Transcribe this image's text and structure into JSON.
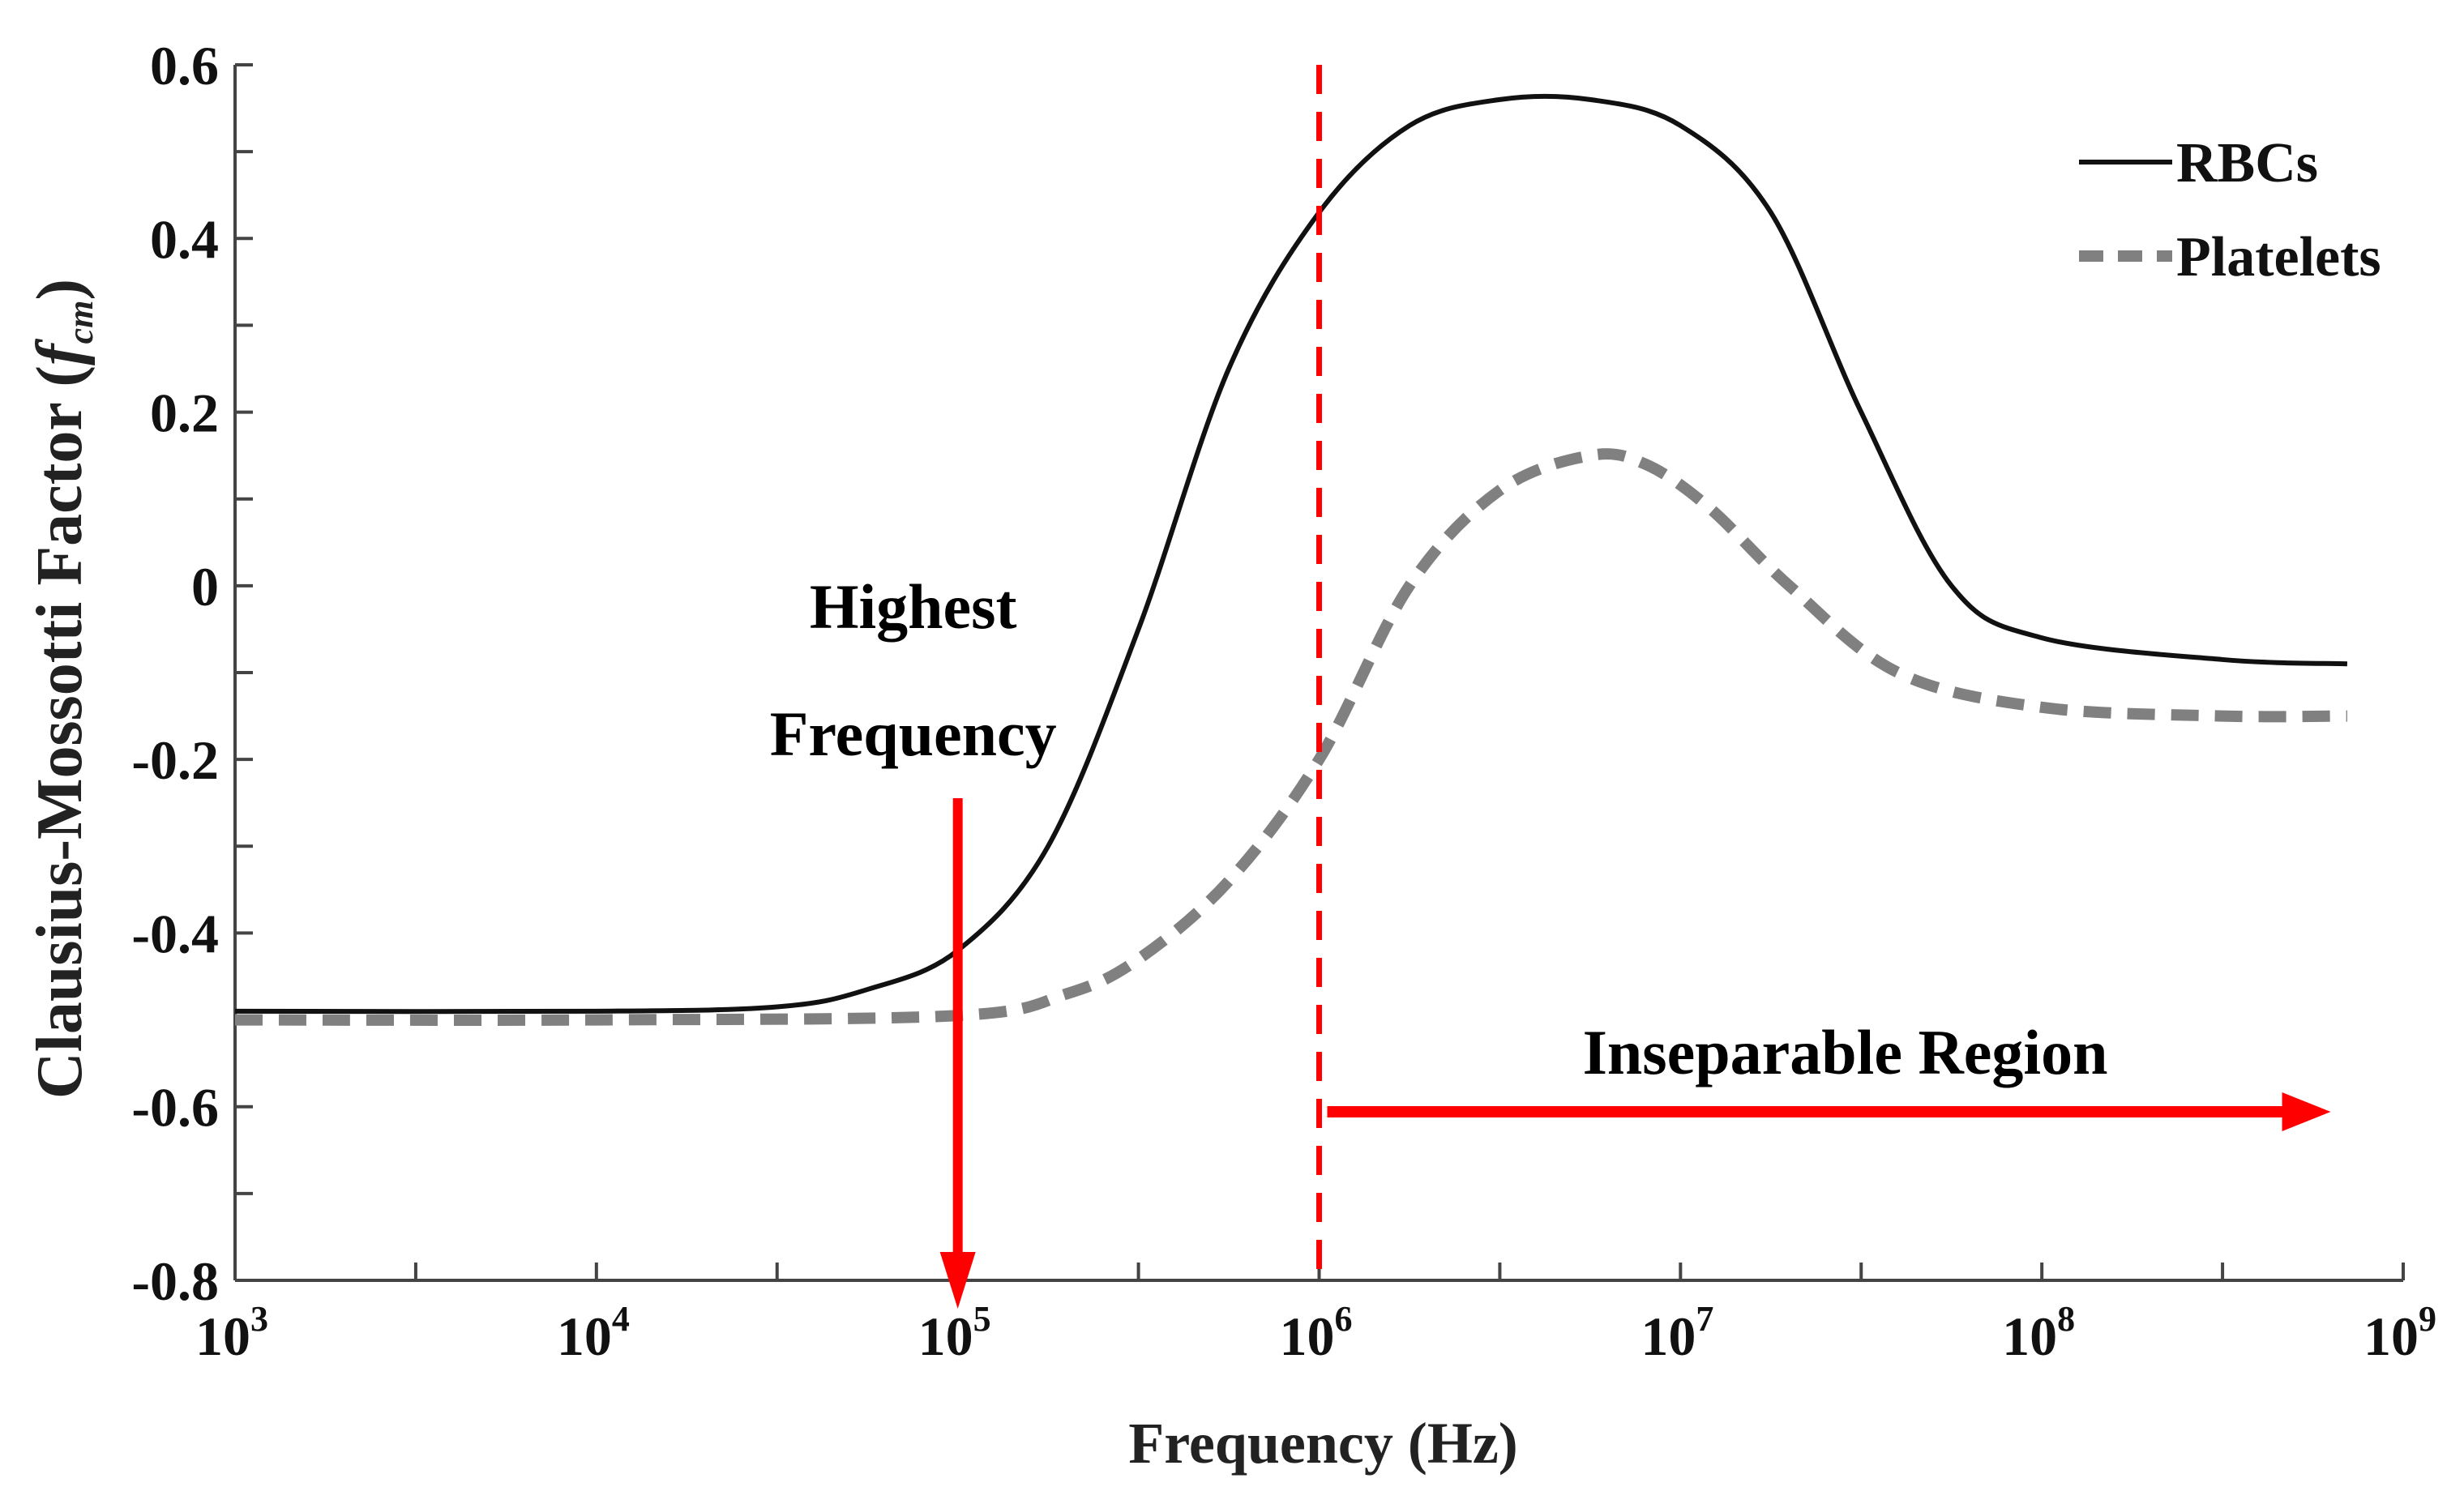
{
  "chart_data": {
    "type": "line",
    "title": "",
    "xlabel": "Frequency (Hz)",
    "ylabel_main": "Clausius-Mossotti Factor (",
    "ylabel_symbol": "f",
    "ylabel_subscript": "cm",
    "ylabel_close": ")",
    "xscale": "log",
    "xlim": [
      1000,
      1000000000
    ],
    "ylim": [
      -0.8,
      0.6
    ],
    "x_ticks": [
      {
        "base": "10",
        "exp": "3",
        "value": 1000
      },
      {
        "base": "10",
        "exp": "4",
        "value": 10000
      },
      {
        "base": "10",
        "exp": "5",
        "value": 100000
      },
      {
        "base": "10",
        "exp": "6",
        "value": 1000000
      },
      {
        "base": "10",
        "exp": "7",
        "value": 10000000
      },
      {
        "base": "10",
        "exp": "8",
        "value": 100000000
      },
      {
        "base": "10",
        "exp": "9",
        "value": 1000000000
      }
    ],
    "y_ticks": [
      {
        "label": "0.6",
        "value": 0.6
      },
      {
        "label": "0.4",
        "value": 0.4
      },
      {
        "label": "0.2",
        "value": 0.2
      },
      {
        "label": "0",
        "value": 0
      },
      {
        "label": "-0.2",
        "value": -0.2
      },
      {
        "label": "-0.4",
        "value": -0.4
      },
      {
        "label": "-0.6",
        "value": -0.6
      },
      {
        "label": "-0.8",
        "value": -0.8
      }
    ],
    "legend_position": "top-right",
    "series": [
      {
        "name": "RBCs",
        "style": "solid",
        "color": "#111111",
        "x": [
          1000,
          10000,
          31600,
          56200,
          100000,
          177800,
          316200,
          562300,
          1000000,
          1778000,
          3162000,
          5623000,
          10000000,
          17780000,
          31620000,
          56230000,
          100000000,
          316200000,
          700000000
        ],
        "y": [
          -0.49,
          -0.49,
          -0.485,
          -0.465,
          -0.42,
          -0.3,
          -0.05,
          0.25,
          0.43,
          0.53,
          0.56,
          0.56,
          0.53,
          0.43,
          0.2,
          0.0,
          -0.06,
          -0.085,
          -0.09
        ]
      },
      {
        "name": "Platelets",
        "style": "dashed",
        "color": "#808080",
        "x": [
          1000,
          10000,
          100000,
          200000,
          316200,
          562300,
          1000000,
          1778000,
          3162000,
          5623000,
          8000000,
          12000000,
          20000000,
          40000000,
          100000000,
          316200000,
          700000000
        ],
        "y": [
          -0.5,
          -0.5,
          -0.495,
          -0.47,
          -0.43,
          -0.34,
          -0.2,
          0.0,
          0.11,
          0.15,
          0.14,
          0.09,
          0.0,
          -0.1,
          -0.14,
          -0.15,
          -0.15
        ]
      }
    ],
    "annotations": {
      "highest_frequency_line1": "Highest",
      "highest_frequency_line2": "Frequency",
      "highest_frequency_x": 100000,
      "cutoff_line_x": 1000000,
      "inseparable_region": "Inseparable Region",
      "inseparable_arrow_to_x": 630000000
    },
    "colors": {
      "axis": "#444444",
      "annotation": "#ff0000",
      "text": "#111111"
    }
  }
}
